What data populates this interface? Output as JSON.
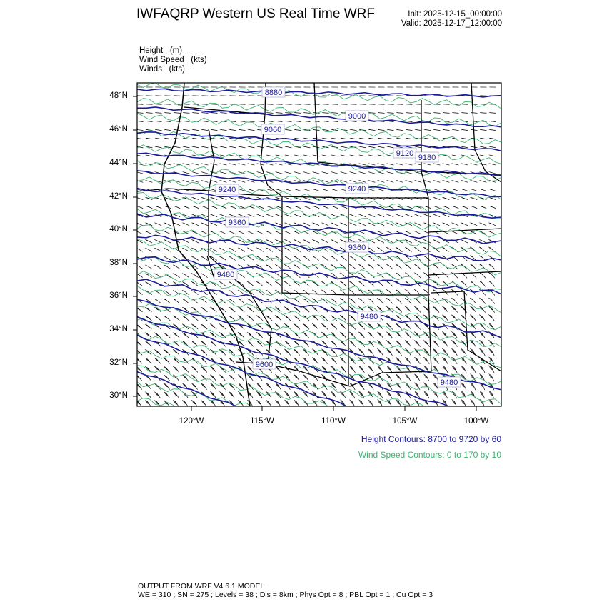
{
  "header": {
    "title": "IWFAQRP Western US Real Time WRF",
    "init": "Init: 2025-12-15_00:00:00",
    "valid": "Valid: 2025-12-17_12:00:00"
  },
  "fields": [
    {
      "name": "Height",
      "units": "(m)"
    },
    {
      "name": "Wind Speed",
      "units": "(kts)"
    },
    {
      "name": "Winds",
      "units": "(kts)"
    }
  ],
  "map": {
    "lat_labels": [
      "48°N",
      "46°N",
      "44°N",
      "42°N",
      "40°N",
      "38°N",
      "36°N",
      "34°N",
      "32°N",
      "30°N"
    ],
    "lon_labels": [
      "120°W",
      "115°W",
      "110°W",
      "105°W",
      "100°W"
    ],
    "height_contour_labels": [
      "8880",
      "9000",
      "9060",
      "9120",
      "9180",
      "9240",
      "9240",
      "9360",
      "9360",
      "9480",
      "9480",
      "9600",
      "9480"
    ],
    "colors": {
      "height": "#1a1a9a",
      "wind_speed": "#3cb371",
      "barbs": "#000000",
      "borders": "#000000"
    }
  },
  "legend": {
    "height_contours": "Height Contours: 8700 to 9720 by 60",
    "wind_speed_contours": "Wind Speed Contours: 0 to 170 by 10"
  },
  "footer": {
    "line1": "OUTPUT FROM WRF V4.6.1 MODEL",
    "line2": "WE = 310 ; SN = 275 ; Levels = 38 ; Dis = 8km ; Phys Opt = 8 ; PBL Opt = 1 ; Cu Opt = 3"
  }
}
